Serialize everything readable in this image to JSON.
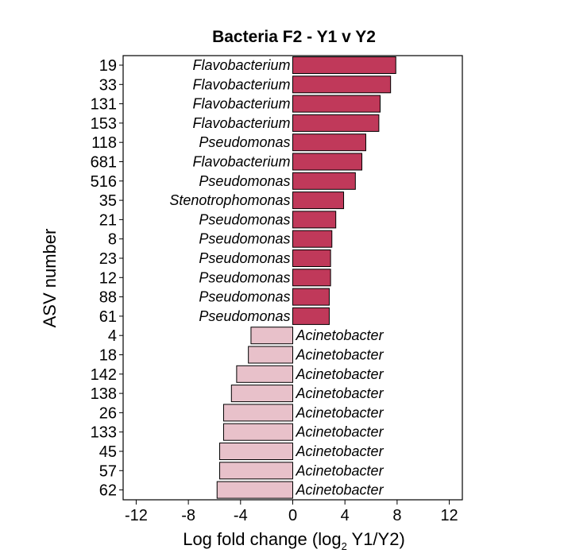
{
  "chart_data": {
    "type": "bar",
    "orientation": "horizontal",
    "title": "Bacteria F2 - Y1 v Y2",
    "ylabel": "ASV number",
    "xlabel": {
      "main": "Log fold change (log",
      "subscript": "2",
      "suffix": " Y1/Y2)"
    },
    "xlim": [
      -13,
      13
    ],
    "xticks": [
      -12,
      -8,
      -4,
      0,
      4,
      8,
      12
    ],
    "colors": {
      "positive": "#c0395a",
      "negative": "#e8c1ca",
      "outline": "#000000"
    },
    "bars": [
      {
        "asv": "19",
        "genus": "Flavobacterium",
        "value": 7.9
      },
      {
        "asv": "33",
        "genus": "Flavobacterium",
        "value": 7.5
      },
      {
        "asv": "131",
        "genus": "Flavobacterium",
        "value": 6.7
      },
      {
        "asv": "153",
        "genus": "Flavobacterium",
        "value": 6.6
      },
      {
        "asv": "118",
        "genus": "Pseudomonas",
        "value": 5.6
      },
      {
        "asv": "681",
        "genus": "Flavobacterium",
        "value": 5.3
      },
      {
        "asv": "516",
        "genus": "Pseudomonas",
        "value": 4.8
      },
      {
        "asv": "35",
        "genus": "Stenotrophomonas",
        "value": 3.9
      },
      {
        "asv": "21",
        "genus": "Pseudomonas",
        "value": 3.3
      },
      {
        "asv": "8",
        "genus": "Pseudomonas",
        "value": 3.0
      },
      {
        "asv": "23",
        "genus": "Pseudomonas",
        "value": 2.9
      },
      {
        "asv": "12",
        "genus": "Pseudomonas",
        "value": 2.9
      },
      {
        "asv": "88",
        "genus": "Pseudomonas",
        "value": 2.8
      },
      {
        "asv": "61",
        "genus": "Pseudomonas",
        "value": 2.8
      },
      {
        "asv": "4",
        "genus": "Acinetobacter",
        "value": -3.2
      },
      {
        "asv": "18",
        "genus": "Acinetobacter",
        "value": -3.4
      },
      {
        "asv": "142",
        "genus": "Acinetobacter",
        "value": -4.3
      },
      {
        "asv": "138",
        "genus": "Acinetobacter",
        "value": -4.7
      },
      {
        "asv": "26",
        "genus": "Acinetobacter",
        "value": -5.3
      },
      {
        "asv": "133",
        "genus": "Acinetobacter",
        "value": -5.3
      },
      {
        "asv": "45",
        "genus": "Acinetobacter",
        "value": -5.6
      },
      {
        "asv": "57",
        "genus": "Acinetobacter",
        "value": -5.6
      },
      {
        "asv": "62",
        "genus": "Acinetobacter",
        "value": -5.8
      }
    ]
  }
}
